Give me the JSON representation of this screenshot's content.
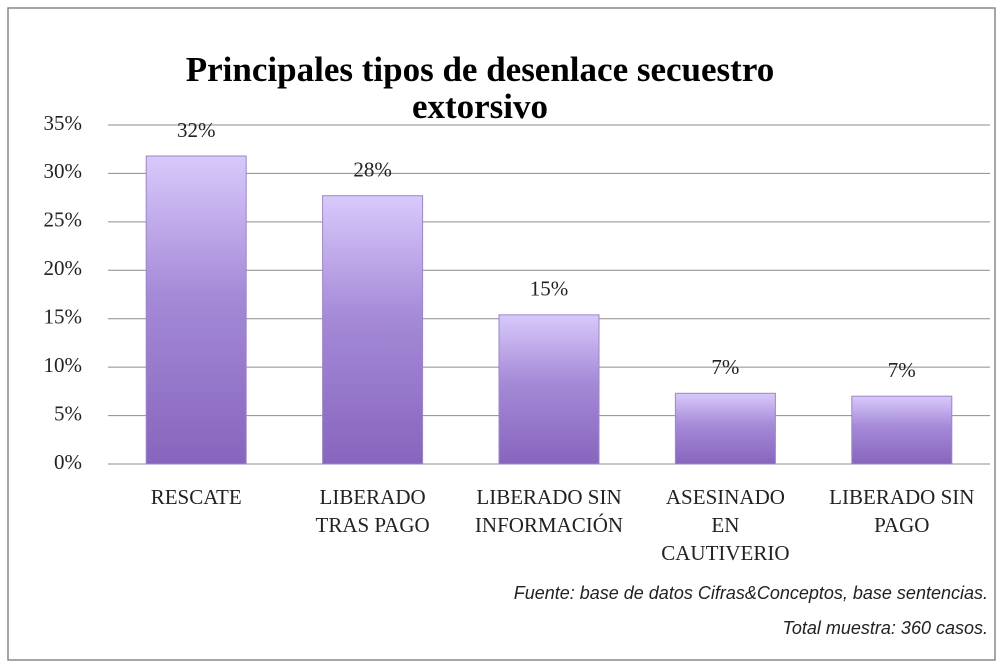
{
  "chart_data": {
    "type": "bar",
    "title": [
      "Principales tipos de desenlace secuestro",
      "extorsivo"
    ],
    "categories": [
      [
        "RESCATE"
      ],
      [
        "LIBERADO",
        "TRAS PAGO"
      ],
      [
        "LIBERADO SIN",
        "INFORMACIÓN"
      ],
      [
        "ASESINADO",
        "EN",
        "CAUTIVERIO"
      ],
      [
        "LIBERADO SIN",
        "PAGO"
      ]
    ],
    "values": [
      31.8,
      27.7,
      15.4,
      7.3,
      7.0
    ],
    "value_labels": [
      "32%",
      "28%",
      "15%",
      "7%",
      "7%"
    ],
    "color": "#a58ad8",
    "ylim": [
      0,
      35
    ],
    "yticks": [
      {
        "value": 0,
        "label": "0%"
      },
      {
        "value": 5,
        "label": "5%"
      },
      {
        "value": 10,
        "label": "10%"
      },
      {
        "value": 15,
        "label": "15%"
      },
      {
        "value": 20,
        "label": "20%"
      },
      {
        "value": 25,
        "label": "25%"
      },
      {
        "value": 30,
        "label": "30%"
      },
      {
        "value": 35,
        "label": "35%"
      }
    ],
    "grid": true,
    "source": [
      "Fuente:  base de datos Cifras&Conceptos, base sentencias.",
      "Total muestra: 360 casos."
    ]
  }
}
